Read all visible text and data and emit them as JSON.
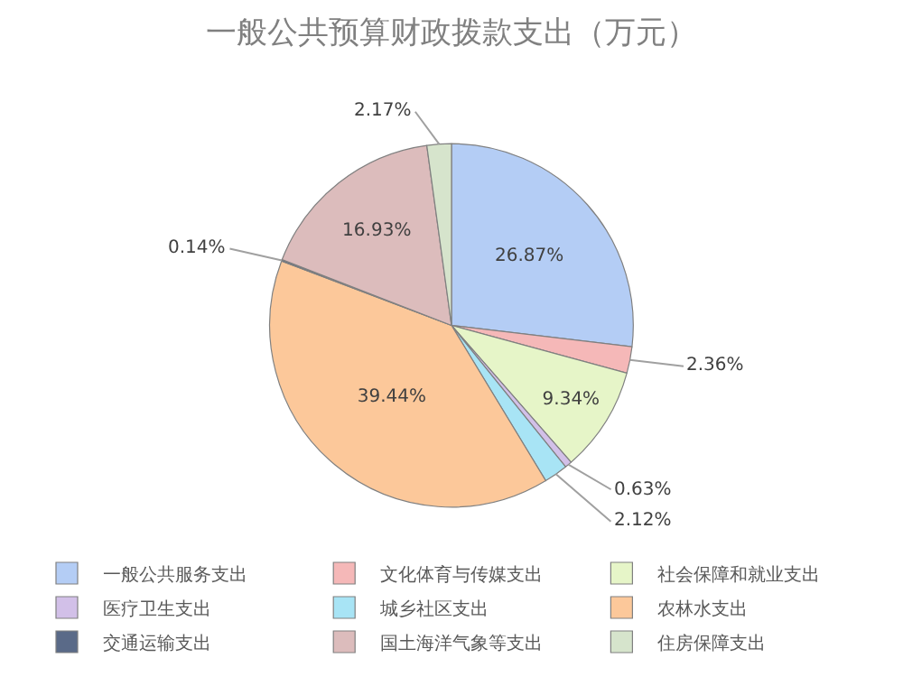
{
  "chart_data": {
    "type": "pie",
    "title": "一般公共预算财政拨款支出（万元）",
    "categories": [
      "一般公共服务支出",
      "文化体育与传媒支出",
      "社会保障和就业支出",
      "医疗卫生支出",
      "城乡社区支出",
      "农林水支出",
      "交通运输支出",
      "国土海洋气象等支出",
      "住房保障支出"
    ],
    "values": [
      26.87,
      2.36,
      9.34,
      0.63,
      2.12,
      39.44,
      0.14,
      16.93,
      2.17
    ],
    "value_labels": [
      "26.87%",
      "2.36%",
      "9.34%",
      "0.63%",
      "2.12%",
      "39.44%",
      "0.14%",
      "16.93%",
      "2.17%"
    ],
    "colors": [
      "#b4cdf5",
      "#f5b8b8",
      "#e6f5c8",
      "#d2c0e8",
      "#a8e4f5",
      "#fcc89a",
      "#5a6a88",
      "#dcbcbc",
      "#d6e4cc"
    ],
    "legend": "bottom"
  }
}
